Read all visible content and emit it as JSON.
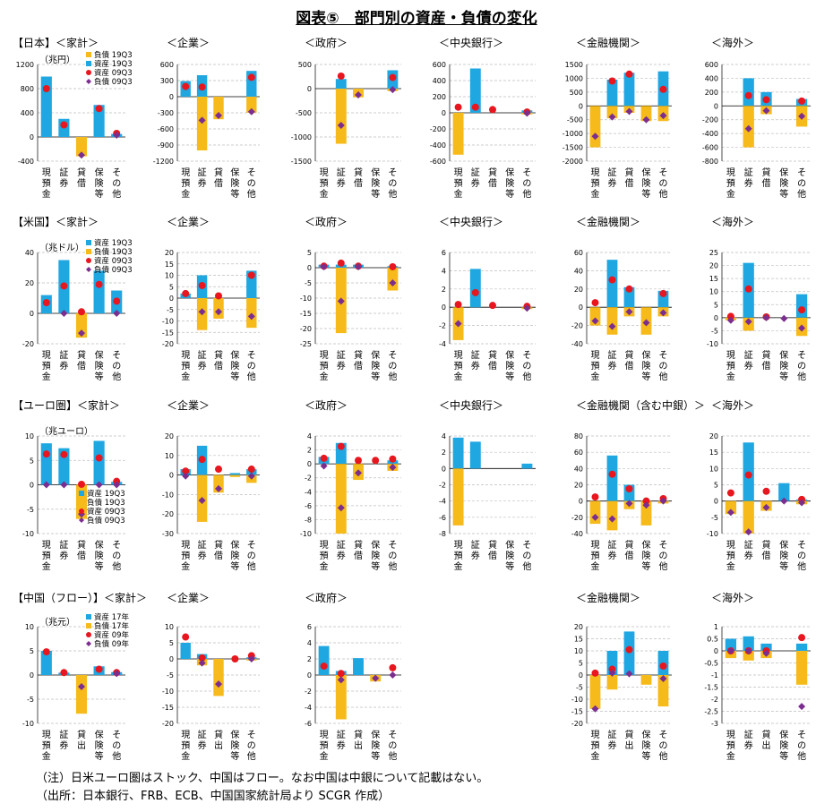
{
  "title": "図表⑤　部門別の資産・負債の変化",
  "notes": [
    "（注）日米ユーロ圏はストック、中国はフロー。なお中国は中銀について記載はない。",
    "（出所：日本銀行、FRB、ECB、中国国家統計局より SCGR 作成）"
  ],
  "colors": {
    "assets": "#1FA7E2",
    "liabilities": "#F6BA1B",
    "assets_old": "#E8161E",
    "liabilities_old": "#7B2E8E",
    "grid": "#BFBFBF"
  },
  "chart_data": [
    {
      "type": "bar",
      "region": "【日本】",
      "panel": "＜家計＞",
      "unit": "（兆円）",
      "ylim": [
        -400,
        1200
      ],
      "ticks": [
        -400,
        0,
        400,
        800,
        1200
      ],
      "categories": [
        "現預金",
        "証券",
        "貸借",
        "保険等",
        "その他"
      ],
      "legend": [
        "負債 19Q3",
        "資産 19Q3",
        "資産 09Q3",
        "負債 09Q3"
      ],
      "assets": [
        1000,
        300,
        0,
        530,
        50
      ],
      "liabilities": [
        0,
        0,
        -320,
        0,
        0
      ],
      "assets_old": [
        800,
        200,
        null,
        470,
        60
      ],
      "liabilities_old": [
        null,
        null,
        -300,
        null,
        30
      ]
    },
    {
      "type": "bar",
      "panel": "＜企業＞",
      "ylim": [
        -1200,
        600
      ],
      "ticks": [
        -1200,
        -900,
        -600,
        -300,
        0,
        300,
        600
      ],
      "categories": [
        "現預金",
        "証券",
        "貸借",
        "保険等",
        "その他"
      ],
      "assets": [
        290,
        400,
        0,
        0,
        480
      ],
      "liabilities": [
        0,
        -1000,
        -420,
        0,
        -300
      ],
      "assets_old": [
        190,
        180,
        null,
        null,
        360
      ],
      "liabilities_old": [
        null,
        -440,
        -350,
        null,
        -280
      ]
    },
    {
      "type": "bar",
      "panel": "＜政府＞",
      "ylim": [
        -1500,
        500
      ],
      "ticks": [
        -1500,
        -1000,
        -500,
        0,
        500
      ],
      "categories": [
        "現預金",
        "証券",
        "貸借",
        "保険等",
        "その他"
      ],
      "assets": [
        0,
        200,
        0,
        0,
        380
      ],
      "liabilities": [
        0,
        -1140,
        -180,
        0,
        -50
      ],
      "assets_old": [
        null,
        260,
        null,
        null,
        230
      ],
      "liabilities_old": [
        null,
        -760,
        -130,
        null,
        -20
      ]
    },
    {
      "type": "bar",
      "panel": "＜中央銀行＞",
      "ylim": [
        -600,
        600
      ],
      "ticks": [
        -600,
        -400,
        -200,
        0,
        200,
        400,
        600
      ],
      "categories": [
        "現預金",
        "証券",
        "貸借",
        "保険等",
        "その他"
      ],
      "assets": [
        0,
        550,
        0,
        0,
        30
      ],
      "liabilities": [
        -520,
        0,
        0,
        0,
        -20
      ],
      "assets_old": [
        70,
        70,
        40,
        null,
        10
      ],
      "liabilities_old": [
        null,
        null,
        null,
        null,
        -5
      ]
    },
    {
      "type": "bar",
      "panel": "＜金融機関＞",
      "ylim": [
        -2000,
        1500
      ],
      "ticks": [
        -2000,
        -1500,
        -1000,
        -500,
        0,
        500,
        1000,
        1500
      ],
      "categories": [
        "現預金",
        "証券",
        "貸借",
        "保険等",
        "その他"
      ],
      "assets": [
        0,
        950,
        1200,
        0,
        1250
      ],
      "liabilities": [
        -1500,
        -450,
        -250,
        -550,
        -550
      ],
      "assets_old": [
        null,
        900,
        1150,
        null,
        600
      ],
      "liabilities_old": [
        -1100,
        -400,
        -200,
        -500,
        -350
      ]
    },
    {
      "type": "bar",
      "panel": "＜海外＞",
      "ylim": [
        -800,
        600
      ],
      "ticks": [
        -800,
        -600,
        -400,
        -200,
        0,
        200,
        400,
        600
      ],
      "categories": [
        "現預金",
        "証券",
        "貸借",
        "保険等",
        "その他"
      ],
      "assets": [
        0,
        400,
        200,
        0,
        100
      ],
      "liabilities": [
        0,
        -600,
        -120,
        0,
        -300
      ],
      "assets_old": [
        null,
        150,
        90,
        null,
        70
      ],
      "liabilities_old": [
        null,
        -330,
        -70,
        null,
        -150
      ]
    },
    {
      "type": "bar",
      "region": "【米国】",
      "panel": "＜家計＞",
      "unit": "（兆ドル）",
      "ylim": [
        -20,
        40
      ],
      "ticks": [
        -20,
        0,
        20,
        40
      ],
      "categories": [
        "現預金",
        "証券",
        "貸借",
        "保険等",
        "その他"
      ],
      "legend": [
        "資産 19Q3",
        "負債 19Q3",
        "資産 09Q3",
        "負債 09Q3"
      ],
      "assets": [
        12,
        35,
        0,
        28,
        15
      ],
      "liabilities": [
        0,
        0,
        -16,
        0,
        0
      ],
      "assets_old": [
        7,
        18,
        1,
        19,
        8
      ],
      "liabilities_old": [
        null,
        0,
        -13,
        null,
        0
      ]
    },
    {
      "type": "bar",
      "panel": "＜企業＞",
      "ylim": [
        -20,
        20
      ],
      "ticks": [
        -20,
        -15,
        -10,
        -5,
        0,
        5,
        10,
        15,
        20
      ],
      "categories": [
        "現預金",
        "証券",
        "貸借",
        "保険等",
        "その他"
      ],
      "assets": [
        2,
        10,
        0,
        0,
        12
      ],
      "liabilities": [
        0,
        -14,
        -9,
        0,
        -13
      ],
      "assets_old": [
        2,
        5.5,
        1,
        null,
        10
      ],
      "liabilities_old": [
        null,
        -6,
        -6,
        null,
        -8
      ]
    },
    {
      "type": "bar",
      "panel": "＜政府＞",
      "ylim": [
        -25,
        5
      ],
      "ticks": [
        -25,
        -20,
        -15,
        -10,
        -5,
        0,
        5
      ],
      "categories": [
        "現預金",
        "証券",
        "貸借",
        "保険等",
        "その他"
      ],
      "assets": [
        1,
        1,
        1,
        0,
        0.5
      ],
      "liabilities": [
        0,
        -21.5,
        0,
        0,
        -7.5
      ],
      "assets_old": [
        0.5,
        1.5,
        0.5,
        null,
        0.3
      ],
      "liabilities_old": [
        0.3,
        -11,
        0.3,
        null,
        -5
      ]
    },
    {
      "type": "bar",
      "panel": "＜中央銀行＞",
      "ylim": [
        -4,
        6
      ],
      "ticks": [
        -4,
        -2,
        0,
        2,
        4,
        6
      ],
      "categories": [
        "現預金",
        "証券",
        "貸借",
        "保険等",
        "その他"
      ],
      "assets": [
        0,
        4.2,
        0,
        0,
        0
      ],
      "liabilities": [
        -3.6,
        0,
        0,
        0,
        -0.2
      ],
      "assets_old": [
        0.3,
        1.6,
        0.2,
        null,
        0.1
      ],
      "liabilities_old": [
        -1.8,
        null,
        null,
        null,
        -0.1
      ]
    },
    {
      "type": "bar",
      "panel": "＜金融機関＞",
      "ylim": [
        -40,
        60
      ],
      "ticks": [
        -40,
        -20,
        0,
        20,
        40,
        60
      ],
      "categories": [
        "現預金",
        "証券",
        "貸借",
        "保険等",
        "その他"
      ],
      "assets": [
        0,
        52,
        22,
        0,
        18
      ],
      "liabilities": [
        -20,
        -30,
        -10,
        -30,
        -10
      ],
      "assets_old": [
        5,
        30,
        20,
        null,
        15
      ],
      "liabilities_old": [
        -15,
        -21,
        -5,
        -17,
        -6
      ]
    },
    {
      "type": "bar",
      "panel": "＜海外＞",
      "ylim": [
        -10,
        25
      ],
      "ticks": [
        -10,
        -5,
        0,
        5,
        10,
        15,
        20,
        25
      ],
      "categories": [
        "現預金",
        "証券",
        "貸借",
        "保険等",
        "その他"
      ],
      "assets": [
        0,
        21,
        0,
        0,
        9
      ],
      "liabilities": [
        -1,
        -5,
        0,
        0,
        -7
      ],
      "assets_old": [
        0.5,
        11,
        0.3,
        null,
        3
      ],
      "liabilities_old": [
        -1,
        -1.5,
        0,
        -0.3,
        -4
      ]
    },
    {
      "type": "bar",
      "region": "【ユーロ圏】",
      "panel": "＜家計＞",
      "unit": "（兆ユーロ）",
      "ylim": [
        -10,
        10
      ],
      "ticks": [
        -10,
        -5,
        0,
        5,
        10
      ],
      "categories": [
        "現預金",
        "証券",
        "貸借",
        "保険等",
        "その他"
      ],
      "legend": [
        "資産 19Q3",
        "負債 19Q3",
        "資産 09Q3",
        "負債 09Q3"
      ],
      "assets": [
        8.5,
        7.5,
        0,
        9,
        0.6
      ],
      "liabilities": [
        0,
        0,
        -7,
        0,
        0
      ],
      "assets_old": [
        6.3,
        6.2,
        0.1,
        5.5,
        0.7
      ],
      "liabilities_old": [
        0,
        0,
        -6,
        0,
        0
      ]
    },
    {
      "type": "bar",
      "panel": "＜企業＞",
      "ylim": [
        -30,
        20
      ],
      "ticks": [
        -30,
        -20,
        -10,
        0,
        10,
        20
      ],
      "categories": [
        "現預金",
        "証券",
        "貸借",
        "保険等",
        "その他"
      ],
      "assets": [
        3,
        15,
        0,
        1,
        3
      ],
      "liabilities": [
        0,
        -24,
        -9,
        -1,
        -4
      ],
      "assets_old": [
        2,
        8,
        3,
        null,
        3
      ],
      "liabilities_old": [
        -0.5,
        -13,
        -7,
        null,
        -0.5
      ]
    },
    {
      "type": "bar",
      "panel": "＜政府＞",
      "ylim": [
        -10,
        4
      ],
      "ticks": [
        -10,
        -8,
        -6,
        -4,
        -2,
        0,
        2,
        4
      ],
      "categories": [
        "現預金",
        "証券",
        "貸借",
        "保険等",
        "その他"
      ],
      "assets": [
        1,
        3,
        0,
        0,
        0.5
      ],
      "liabilities": [
        0,
        -10,
        -2.3,
        0,
        -1
      ],
      "assets_old": [
        0.8,
        2.5,
        0.5,
        0.5,
        0.7
      ],
      "liabilities_old": [
        -0.3,
        -6.3,
        -1.3,
        null,
        -0.5
      ]
    },
    {
      "type": "bar",
      "panel": "＜中央銀行＞",
      "ylim": [
        -8,
        4
      ],
      "ticks": [
        -8,
        -6,
        -4,
        -2,
        0,
        2,
        4
      ],
      "categories": [
        "現預金",
        "証券",
        "貸借",
        "保険等",
        "その他"
      ],
      "assets": [
        3.8,
        3.3,
        0,
        0,
        0.6
      ],
      "liabilities": [
        -7,
        0,
        0,
        0,
        0
      ],
      "assets_old": [],
      "liabilities_old": []
    },
    {
      "type": "bar",
      "panel": "＜金融機関（含む中銀）＞",
      "ylim": [
        -40,
        80
      ],
      "ticks": [
        -40,
        -20,
        0,
        20,
        40,
        60,
        80
      ],
      "categories": [
        "現預金",
        "証券",
        "貸借",
        "保険等",
        "その他"
      ],
      "assets": [
        0,
        56,
        20,
        0,
        0
      ],
      "liabilities": [
        -28,
        -36,
        -10,
        -30,
        -3
      ],
      "assets_old": [
        5,
        33,
        15,
        0,
        3
      ],
      "liabilities_old": [
        -20,
        -22,
        -3,
        -5,
        0
      ]
    },
    {
      "type": "bar",
      "panel": "＜海外＞",
      "ylim": [
        -10,
        20
      ],
      "ticks": [
        -10,
        -5,
        0,
        5,
        10,
        15,
        20
      ],
      "categories": [
        "現預金",
        "証券",
        "貸借",
        "保険等",
        "その他"
      ],
      "assets": [
        0,
        18,
        0,
        5.5,
        0.5
      ],
      "liabilities": [
        -4,
        -10,
        -3,
        0,
        -1
      ],
      "assets_old": [
        2.5,
        8,
        3,
        null,
        0.5
      ],
      "liabilities_old": [
        -3.5,
        -9.5,
        -2,
        0,
        -0.5
      ]
    },
    {
      "type": "bar",
      "region": "【中国（フロー）】",
      "panel": "＜家計＞",
      "unit": "（兆元）",
      "ylim": [
        -10,
        10
      ],
      "ticks": [
        -10,
        -5,
        0,
        5,
        10
      ],
      "categories": [
        "現預金",
        "証券",
        "貸出",
        "保険等",
        "その他"
      ],
      "legend": [
        "資産 17年",
        "負債 17年",
        "資産 09年",
        "負債 09年"
      ],
      "assets": [
        5,
        0.5,
        0,
        1.8,
        0.6
      ],
      "liabilities": [
        0,
        0,
        -8,
        0,
        0
      ],
      "assets_old": [
        4.8,
        0.5,
        null,
        1.2,
        0.5
      ],
      "liabilities_old": [
        null,
        null,
        -2.4,
        null,
        0.3
      ]
    },
    {
      "type": "bar",
      "panel": "＜企業＞",
      "ylim": [
        -20,
        10
      ],
      "ticks": [
        -20,
        -15,
        -10,
        -5,
        0,
        5,
        10
      ],
      "categories": [
        "現預金",
        "証券",
        "貸出",
        "保険等",
        "その他"
      ],
      "assets": [
        5,
        1.5,
        0,
        0,
        0.5
      ],
      "liabilities": [
        0,
        -2,
        -11.5,
        0,
        -0.5
      ],
      "assets_old": [
        6.8,
        0.3,
        null,
        0,
        1
      ],
      "liabilities_old": [
        null,
        -1.3,
        -7.8,
        null,
        0
      ]
    },
    {
      "type": "bar",
      "panel": "＜政府＞",
      "ylim": [
        -6,
        6
      ],
      "ticks": [
        -6,
        -4,
        -2,
        0,
        2,
        4,
        6
      ],
      "categories": [
        "現預金",
        "証券",
        "貸出",
        "保険等",
        "その他"
      ],
      "assets": [
        3.6,
        0.5,
        2.1,
        0,
        0
      ],
      "liabilities": [
        0,
        -5.5,
        0,
        -0.8,
        0
      ],
      "assets_old": [
        1.1,
        0.2,
        null,
        null,
        0.9
      ],
      "liabilities_old": [
        null,
        -0.6,
        null,
        -0.4,
        0
      ]
    },
    {
      "type": "bar",
      "panel": "＜金融機関＞",
      "ylim": [
        -20,
        20
      ],
      "ticks": [
        -20,
        -15,
        -10,
        -5,
        0,
        5,
        10,
        15,
        20
      ],
      "categories": [
        "現預金",
        "証券",
        "貸出",
        "保険等",
        "その他"
      ],
      "assets": [
        0,
        10,
        18,
        0,
        10
      ],
      "liabilities": [
        -14,
        -6,
        0,
        -4,
        -13
      ],
      "assets_old": [
        0.8,
        2.4,
        10.5,
        null,
        3.7
      ],
      "liabilities_old": [
        -14,
        0.8,
        0.5,
        null,
        -1.5
      ]
    },
    {
      "type": "bar",
      "panel": "＜海外＞",
      "ylim": [
        -3,
        1
      ],
      "ticks": [
        -3,
        -2.5,
        -2,
        -1.5,
        -1,
        -0.5,
        0,
        0.5,
        1
      ],
      "categories": [
        "現預金",
        "証券",
        "貸出",
        "保険等",
        "その他"
      ],
      "assets": [
        0.5,
        0.6,
        0.3,
        0,
        0.3
      ],
      "liabilities": [
        -0.3,
        -0.4,
        -0.3,
        0,
        -1.4
      ],
      "assets_old": [
        0,
        0,
        0,
        null,
        0.55
      ],
      "liabilities_old": [
        0,
        0,
        -0.1,
        null,
        -2.3
      ]
    }
  ]
}
